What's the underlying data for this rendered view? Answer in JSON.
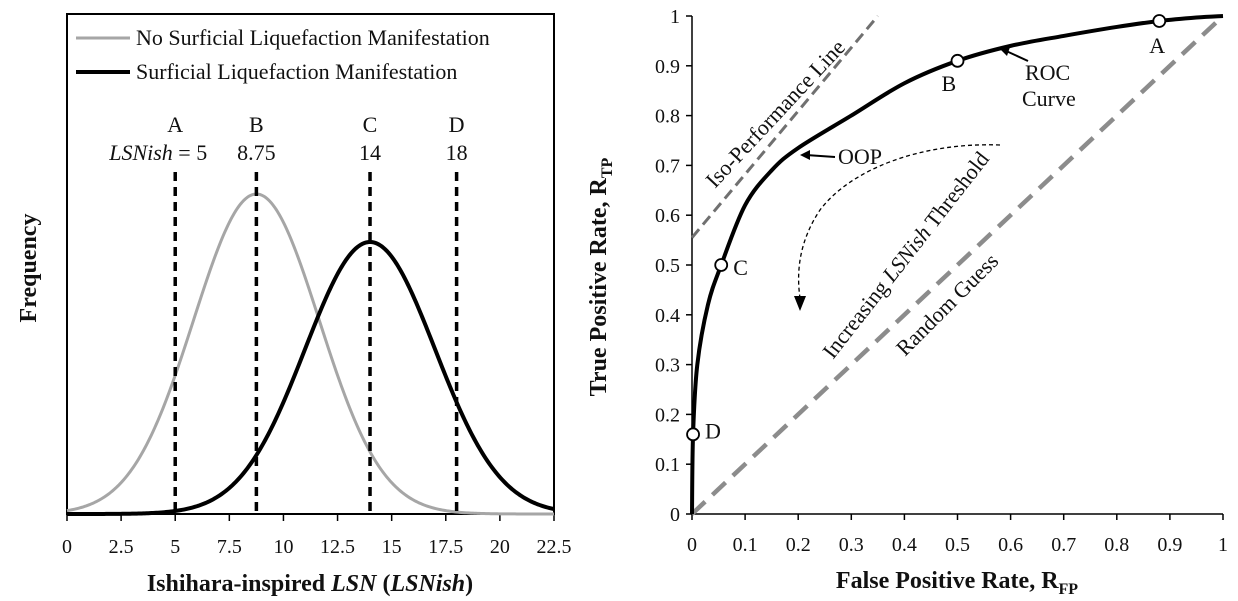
{
  "chart_data": [
    {
      "type": "line",
      "xlabel_prefix": "Ishihara-inspired ",
      "xlabel_italic": "LSN",
      "xlabel_suffix": " (",
      "xlabel_italic2": "LSNish",
      "xlabel_close": ")",
      "ylabel": "Frequency",
      "xlim": [
        0,
        22.5
      ],
      "xticks": [
        "0",
        "2.5",
        "5",
        "7.5",
        "10",
        "12.5",
        "15",
        "17.5",
        "20",
        "22.5"
      ],
      "legend": {
        "placement": "top-left",
        "entries": [
          "No Surficial Liquefaction Manifestation",
          "Surficial Liquefaction Manifestation"
        ]
      },
      "series": [
        {
          "name": "No Surficial Liquefaction Manifestation",
          "color": "#a6a6a6",
          "mean": 8.75,
          "sd": 2.9,
          "peak": 1.0
        },
        {
          "name": "Surficial Liquefaction Manifestation",
          "color": "#000000",
          "mean": 14,
          "sd": 3.0,
          "peak": 0.85
        }
      ],
      "thresholds": [
        {
          "letter": "A",
          "label_prefix": "LSNish",
          "label_suffix": " = 5",
          "x": 5
        },
        {
          "letter": "B",
          "label": "8.75",
          "x": 8.75
        },
        {
          "letter": "C",
          "label": "14",
          "x": 14
        },
        {
          "letter": "D",
          "label": "18",
          "x": 18
        }
      ]
    },
    {
      "type": "line",
      "xlabel": "False Positive Rate, R",
      "xlabel_sub": "FP",
      "ylabel": "True Positive Rate, R",
      "ylabel_sub": "TP",
      "xlim": [
        0,
        1
      ],
      "ylim": [
        0,
        1
      ],
      "xticks": [
        "0",
        "0.1",
        "0.2",
        "0.3",
        "0.4",
        "0.5",
        "0.6",
        "0.7",
        "0.8",
        "0.9",
        "1"
      ],
      "yticks": [
        "0",
        "0.1",
        "0.2",
        "0.3",
        "0.4",
        "0.5",
        "0.6",
        "0.7",
        "0.8",
        "0.9",
        "1"
      ],
      "roc_curve": {
        "x": [
          0,
          0.002,
          0.01,
          0.03,
          0.055,
          0.1,
          0.15,
          0.2,
          0.3,
          0.4,
          0.5,
          0.6,
          0.7,
          0.8,
          0.88,
          0.95,
          1
        ],
        "y": [
          0,
          0.16,
          0.3,
          0.42,
          0.5,
          0.62,
          0.69,
          0.735,
          0.8,
          0.865,
          0.91,
          0.94,
          0.96,
          0.978,
          0.99,
          0.997,
          1
        ]
      },
      "points": [
        {
          "name": "A",
          "x": 0.88,
          "y": 0.99
        },
        {
          "name": "B",
          "x": 0.5,
          "y": 0.91
        },
        {
          "name": "C",
          "x": 0.055,
          "y": 0.5
        },
        {
          "name": "D",
          "x": 0.002,
          "y": 0.16
        }
      ],
      "random_guess": {
        "x": [
          0,
          1
        ],
        "y": [
          0,
          1
        ]
      },
      "iso_performance": {
        "x": [
          0,
          0.35
        ],
        "y": [
          0.555,
          1
        ]
      },
      "annotations": {
        "iso_line": "Iso-Performance Line",
        "roc_1": "ROC",
        "roc_2": "Curve",
        "oop": "OOP",
        "random_guess": "Random Guess",
        "increasing_1": "Increasing ",
        "increasing_italic": "LSNish",
        "increasing_2": " Threshold"
      }
    }
  ]
}
